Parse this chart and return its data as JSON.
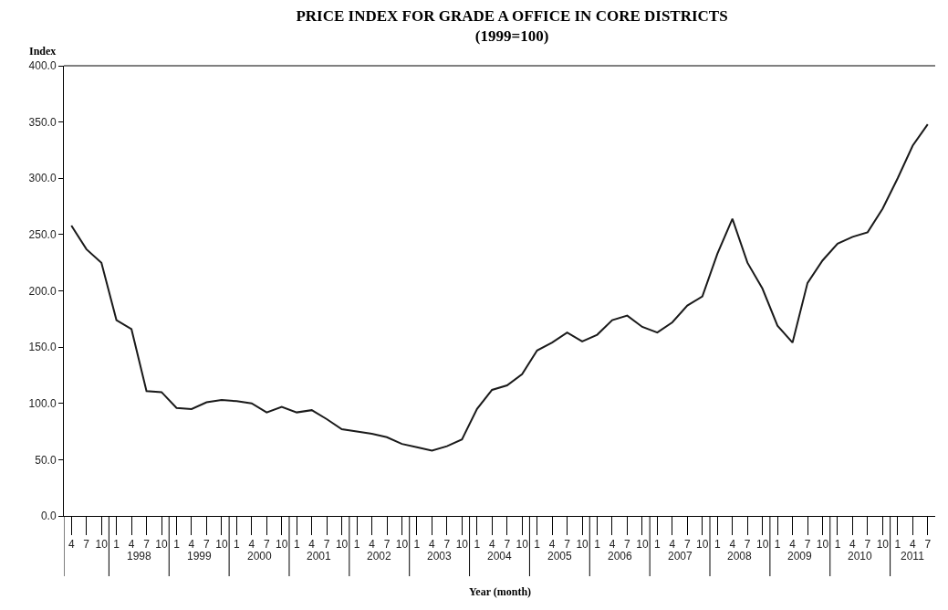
{
  "chart_data": {
    "type": "line",
    "title": "PRICE INDEX FOR GRADE A OFFICE IN CORE DISTRICTS\n(1999=100)",
    "ylabel": "Index",
    "xlabel": "Year (month)",
    "categories": [
      "4",
      "7",
      "10",
      "1",
      "4",
      "7",
      "10",
      "1",
      "4",
      "7",
      "10",
      "1",
      "4",
      "7",
      "10",
      "1",
      "4",
      "7",
      "10",
      "1",
      "4",
      "7",
      "10",
      "1",
      "4",
      "7",
      "10",
      "1",
      "4",
      "7",
      "10",
      "1",
      "4",
      "7",
      "10",
      "1",
      "4",
      "7",
      "10",
      "1",
      "4",
      "7",
      "10",
      "1",
      "4",
      "7",
      "10",
      "1",
      "4",
      "7",
      "10",
      "1",
      "4",
      "7",
      "10",
      "1",
      "4",
      "7"
    ],
    "annotations": [
      "1998",
      "1999",
      "2000",
      "2001",
      "2002",
      "2003",
      "2004",
      "2005",
      "2006",
      "2007",
      "2008",
      "2009",
      "2010",
      "2011"
    ],
    "series": [
      {
        "color": "#1a1a1a",
        "values": [
          258,
          237,
          225,
          174,
          166,
          111,
          110,
          96,
          95,
          101,
          103,
          102,
          100,
          92,
          97,
          92,
          94,
          86,
          77,
          75,
          73,
          70,
          64,
          61,
          58,
          62,
          68,
          95,
          112,
          116,
          126,
          147,
          154,
          163,
          155,
          161,
          174,
          178,
          168,
          163,
          172,
          187,
          195,
          233,
          264,
          225,
          202,
          169,
          154,
          207,
          227,
          242,
          248,
          252,
          273,
          300,
          329,
          348
        ]
      }
    ],
    "ylim": [
      0,
      400
    ],
    "yticks": [
      {
        "value": 0,
        "label": "0.0"
      },
      {
        "value": 50,
        "label": "50.0"
      },
      {
        "value": 100,
        "label": "100.0"
      },
      {
        "value": 150,
        "label": "150.0"
      },
      {
        "value": 200,
        "label": "200.0"
      },
      {
        "value": 250,
        "label": "250.0"
      },
      {
        "value": 300,
        "label": "300.0"
      },
      {
        "value": 350,
        "label": "350.0"
      },
      {
        "value": 400,
        "label": "400.0"
      }
    ],
    "marker": "none",
    "line_style": "solid"
  }
}
